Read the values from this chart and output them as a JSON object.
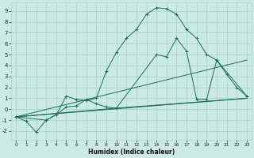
{
  "xlabel": "Humidex (Indice chaleur)",
  "bg_color": "#cceae4",
  "grid_color": "#aad4cc",
  "line_color": "#1a6b5a",
  "x_ticks": [
    0,
    1,
    2,
    3,
    4,
    5,
    6,
    7,
    8,
    9,
    10,
    11,
    12,
    13,
    14,
    15,
    16,
    17,
    18,
    19,
    20,
    21,
    22,
    23
  ],
  "y_ticks": [
    -2,
    -1,
    0,
    1,
    2,
    3,
    4,
    5,
    6,
    7,
    8,
    9
  ],
  "xlim": [
    -0.5,
    23.5
  ],
  "ylim": [
    -2.8,
    9.8
  ],
  "series1_x": [
    0,
    1,
    2,
    3,
    4,
    5,
    6,
    7,
    8,
    9,
    10,
    11,
    12,
    13,
    14,
    15,
    16,
    17,
    18,
    19,
    20,
    21,
    22,
    23
  ],
  "series1_y": [
    -0.7,
    -1.1,
    -2.1,
    -1.0,
    -0.5,
    1.2,
    0.9,
    0.8,
    1.0,
    3.5,
    5.2,
    6.5,
    7.3,
    8.7,
    9.3,
    9.2,
    8.7,
    7.3,
    6.5,
    5.0,
    4.5,
    3.2,
    2.0,
    1.2
  ],
  "series2_x": [
    0,
    3,
    4,
    5,
    6,
    7,
    8,
    9,
    10,
    14,
    15,
    16,
    17,
    18,
    19,
    20,
    23
  ],
  "series2_y": [
    -0.7,
    -1.0,
    -0.5,
    0.2,
    0.3,
    0.9,
    0.5,
    0.2,
    0.1,
    5.0,
    4.8,
    6.5,
    5.3,
    0.9,
    0.9,
    4.5,
    1.2
  ],
  "series3_x": [
    0,
    23
  ],
  "series3_y": [
    -0.7,
    4.5
  ],
  "series4_x": [
    0,
    23
  ],
  "series4_y": [
    -0.7,
    1.0
  ],
  "series5_x": [
    0,
    10,
    23
  ],
  "series5_y": [
    -0.7,
    0.1,
    1.0
  ]
}
